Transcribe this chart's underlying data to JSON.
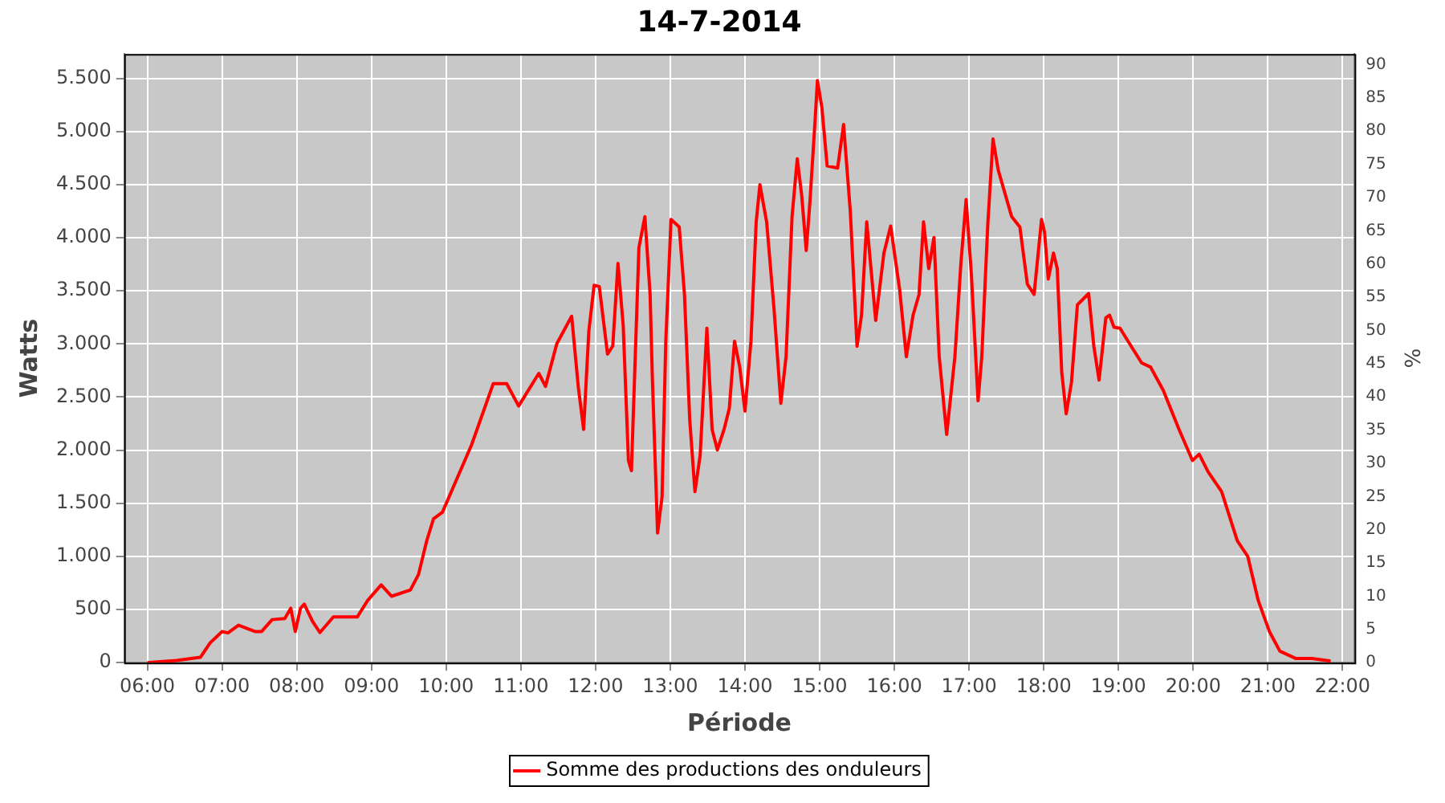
{
  "chart_data": {
    "type": "line",
    "title": "14-7-2014",
    "xlabel": "Période",
    "ylabel": "Watts",
    "y2label": "%",
    "x": [
      6.0,
      6.39,
      6.71,
      6.84,
      7.0,
      7.08,
      7.22,
      7.44,
      7.53,
      7.67,
      7.84,
      7.92,
      7.98,
      8.05,
      8.1,
      8.21,
      8.31,
      8.49,
      8.81,
      8.95,
      9.13,
      9.27,
      9.52,
      9.63,
      9.74,
      9.83,
      9.95,
      10.34,
      10.63,
      10.81,
      10.97,
      11.24,
      11.33,
      11.48,
      11.68,
      11.77,
      11.84,
      11.91,
      11.98,
      12.05,
      12.16,
      12.23,
      12.3,
      12.37,
      12.44,
      12.48,
      12.58,
      12.66,
      12.73,
      12.76,
      12.83,
      12.89,
      12.94,
      13.01,
      13.12,
      13.19,
      13.26,
      13.33,
      13.4,
      13.49,
      13.56,
      13.63,
      13.72,
      13.79,
      13.86,
      13.93,
      14.0,
      14.08,
      14.15,
      14.2,
      14.29,
      14.39,
      14.48,
      14.55,
      14.63,
      14.7,
      14.76,
      14.82,
      14.87,
      14.94,
      14.97,
      15.03,
      15.1,
      15.24,
      15.32,
      15.41,
      15.5,
      15.56,
      15.63,
      15.75,
      15.86,
      15.95,
      16.07,
      16.16,
      16.25,
      16.33,
      16.39,
      16.46,
      16.53,
      16.6,
      16.7,
      16.81,
      16.89,
      16.96,
      17.03,
      17.12,
      17.17,
      17.25,
      17.32,
      17.39,
      17.46,
      17.57,
      17.68,
      17.78,
      17.87,
      17.97,
      18.01,
      18.06,
      18.13,
      18.18,
      18.24,
      18.3,
      18.37,
      18.45,
      18.6,
      18.67,
      18.74,
      18.83,
      18.88,
      18.94,
      19.02,
      19.17,
      19.31,
      19.43,
      19.6,
      19.81,
      19.99,
      20.08,
      20.2,
      20.38,
      20.59,
      20.73,
      20.87,
      21.02,
      21.16,
      21.37,
      21.59,
      21.84
    ],
    "series": [
      {
        "name": "Somme des productions des onduleurs",
        "color": "#ff0000",
        "values": [
          0,
          20,
          50,
          186,
          293,
          280,
          352,
          293,
          293,
          405,
          415,
          512,
          293,
          512,
          551,
          390,
          283,
          430,
          430,
          586,
          732,
          625,
          683,
          830,
          1148,
          1353,
          1416,
          2050,
          2626,
          2626,
          2416,
          2723,
          2601,
          3001,
          3261,
          2587,
          2196,
          3124,
          3553,
          3540,
          2905,
          2980,
          3758,
          3173,
          1903,
          1807,
          3905,
          4198,
          3466,
          2685,
          1221,
          1562,
          3026,
          4173,
          4100,
          3466,
          2294,
          1610,
          1953,
          3148,
          2196,
          2002,
          2196,
          2392,
          3026,
          2782,
          2367,
          3026,
          4149,
          4500,
          4149,
          3319,
          2441,
          2880,
          4198,
          4744,
          4393,
          3880,
          4344,
          5124,
          5481,
          5222,
          4676,
          4656,
          5066,
          4246,
          2978,
          3271,
          4149,
          3221,
          3856,
          4110,
          3514,
          2880,
          3271,
          3466,
          4149,
          3710,
          4003,
          2880,
          2148,
          2880,
          3758,
          4359,
          3661,
          2465,
          2880,
          4124,
          4930,
          4637,
          4466,
          4198,
          4100,
          3563,
          3466,
          4173,
          4051,
          3612,
          3856,
          3710,
          2734,
          2343,
          2636,
          3368,
          3475,
          2978,
          2660,
          3246,
          3271,
          3158,
          3148,
          2978,
          2821,
          2782,
          2562,
          2196,
          1903,
          1962,
          1796,
          1610,
          1148,
          1001,
          586,
          293,
          108,
          40,
          40,
          15
        ]
      }
    ],
    "xlim": [
      5.69,
      22.16
    ],
    "xticks": [
      {
        "value": 6,
        "label": "06:00"
      },
      {
        "value": 7,
        "label": "07:00"
      },
      {
        "value": 8,
        "label": "08:00"
      },
      {
        "value": 9,
        "label": "09:00"
      },
      {
        "value": 10,
        "label": "10:00"
      },
      {
        "value": 11,
        "label": "11:00"
      },
      {
        "value": 12,
        "label": "12:00"
      },
      {
        "value": 13,
        "label": "13:00"
      },
      {
        "value": 14,
        "label": "14:00"
      },
      {
        "value": 15,
        "label": "15:00"
      },
      {
        "value": 16,
        "label": "16:00"
      },
      {
        "value": 17,
        "label": "17:00"
      },
      {
        "value": 18,
        "label": "18:00"
      },
      {
        "value": 19,
        "label": "19:00"
      },
      {
        "value": 20,
        "label": "20:00"
      },
      {
        "value": 21,
        "label": "21:00"
      },
      {
        "value": 22,
        "label": "22:00"
      }
    ],
    "ylim": [
      0,
      5730
    ],
    "yticks": [
      0,
      500,
      {
        "value": 1000,
        "label": "1.000"
      },
      {
        "value": 1500,
        "label": "1.500"
      },
      {
        "value": 2000,
        "label": "2.000"
      },
      {
        "value": 2500,
        "label": "2.500"
      },
      {
        "value": 3000,
        "label": "3.000"
      },
      {
        "value": 3500,
        "label": "3.500"
      },
      {
        "value": 4000,
        "label": "4.000"
      },
      {
        "value": 4500,
        "label": "4.500"
      },
      {
        "value": 5000,
        "label": "5.000"
      },
      {
        "value": 5500,
        "label": "5.500"
      }
    ],
    "y2lim": [
      0,
      91.6
    ],
    "y2ticks": [
      0,
      5,
      10,
      15,
      20,
      25,
      30,
      35,
      40,
      45,
      50,
      55,
      60,
      65,
      70,
      75,
      80,
      85,
      90
    ],
    "grid": true,
    "legend": "bottom",
    "marker": "none",
    "line_style": "solid"
  }
}
